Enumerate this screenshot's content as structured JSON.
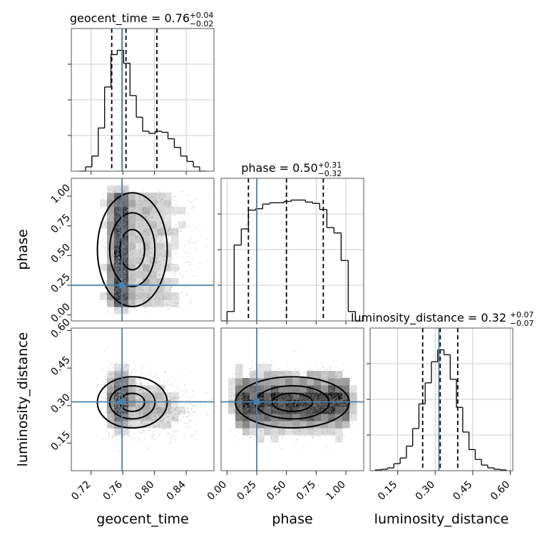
{
  "chart_data": {
    "type": "corner",
    "parameters": [
      {
        "name": "geocent_time",
        "range": [
          0.695,
          0.875
        ],
        "ticks": [
          0.72,
          0.76,
          0.8,
          0.84
        ],
        "tick_labels": [
          "0.72",
          "0.76",
          "0.80",
          "0.84"
        ],
        "truth": 0.759,
        "quantiles": [
          0.746,
          0.764,
          0.803
        ]
      },
      {
        "name": "phase",
        "range": [
          -0.05,
          1.15
        ],
        "ticks": [
          0.0,
          0.25,
          0.5,
          0.75,
          1.0
        ],
        "tick_labels": [
          "0.00",
          "0.25",
          "0.50",
          "0.75",
          "1.00"
        ],
        "truth": 0.25,
        "quantiles": [
          0.18,
          0.5,
          0.81
        ]
      },
      {
        "name": "luminosity_distance",
        "range": [
          0.04,
          0.61
        ],
        "ticks": [
          0.15,
          0.3,
          0.45,
          0.6
        ],
        "tick_labels": [
          "0.15",
          "0.30",
          "0.45",
          "0.60"
        ],
        "truth": 0.315,
        "quantiles": [
          0.25,
          0.32,
          0.39
        ]
      }
    ],
    "titles": {
      "geocent_time": {
        "prefix": "geocent_time = 0.76",
        "plus": "+0.04",
        "minus": "−0.02"
      },
      "phase": {
        "prefix": "phase = 0.50",
        "plus": "+0.31",
        "minus": "−0.32"
      },
      "luminosity_distance": {
        "prefix": "luminosity_distance = 0.32",
        "plus": "+0.07",
        "minus": "−0.07"
      }
    },
    "histograms": {
      "geocent_time": {
        "edges": [
          0.705,
          0.713,
          0.721,
          0.729,
          0.737,
          0.745,
          0.753,
          0.761,
          0.769,
          0.777,
          0.785,
          0.793,
          0.801,
          0.809,
          0.817,
          0.825,
          0.833,
          0.841,
          0.849,
          0.857,
          0.865
        ],
        "counts": [
          0,
          4,
          14,
          40,
          78,
          108,
          112,
          100,
          70,
          50,
          37,
          35,
          37,
          36,
          30,
          22,
          14,
          9,
          4,
          0
        ]
      },
      "phase": {
        "edges": [
          -0.05,
          0.0,
          0.06,
          0.12,
          0.18,
          0.24,
          0.3,
          0.36,
          0.42,
          0.48,
          0.54,
          0.6,
          0.66,
          0.72,
          0.78,
          0.84,
          0.9,
          0.96,
          1.02,
          1.08,
          1.15
        ],
        "counts": [
          0,
          14,
          113,
          137,
          165,
          167,
          174,
          176,
          176,
          178,
          180,
          180,
          177,
          175,
          166,
          139,
          131,
          90,
          14,
          0
        ]
      },
      "luminosity_distance": {
        "edges": [
          0.06,
          0.085,
          0.11,
          0.135,
          0.16,
          0.185,
          0.21,
          0.235,
          0.26,
          0.285,
          0.31,
          0.335,
          0.36,
          0.385,
          0.41,
          0.435,
          0.46,
          0.485,
          0.51,
          0.535,
          0.56,
          0.585
        ],
        "counts": [
          1,
          2,
          4,
          10,
          18,
          35,
          60,
          95,
          125,
          155,
          172,
          165,
          130,
          90,
          55,
          30,
          16,
          8,
          4,
          2,
          1
        ]
      }
    },
    "grid": true
  }
}
